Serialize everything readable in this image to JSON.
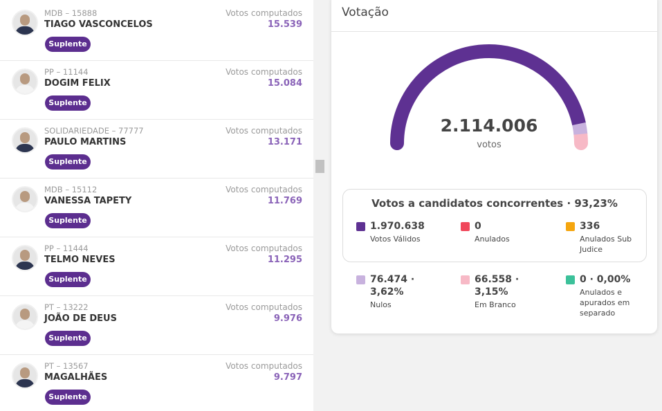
{
  "candidates": [
    {
      "party": "MDB – 15888",
      "name": "TIAGO VASCONCELOS",
      "votes_label": "Votos computados",
      "votes": "15.539",
      "status": "Suplente"
    },
    {
      "party": "PP – 11144",
      "name": "DOGIM FELIX",
      "votes_label": "Votos computados",
      "votes": "15.084",
      "status": "Suplente"
    },
    {
      "party": "SOLIDARIEDADE – 77777",
      "name": "PAULO MARTINS",
      "votes_label": "Votos computados",
      "votes": "13.171",
      "status": "Suplente"
    },
    {
      "party": "MDB – 15112",
      "name": "VANESSA TAPETY",
      "votes_label": "Votos computados",
      "votes": "11.769",
      "status": "Suplente"
    },
    {
      "party": "PP – 11444",
      "name": "TELMO NEVES",
      "votes_label": "Votos computados",
      "votes": "11.295",
      "status": "Suplente"
    },
    {
      "party": "PT – 13222",
      "name": "JOÃO DE DEUS",
      "votes_label": "Votos computados",
      "votes": "9.976",
      "status": "Suplente"
    },
    {
      "party": "PT – 13567",
      "name": "MAGALHÃES",
      "votes_label": "Votos computados",
      "votes": "9.797",
      "status": "Suplente"
    }
  ],
  "voting": {
    "title": "Votação",
    "total": "2.114.006",
    "total_unit": "votos",
    "summary": {
      "title": "Votos a candidatos concorrentes · 93,23%",
      "items": [
        {
          "value": "1.970.638",
          "label": "Votos Válidos"
        },
        {
          "value": "0",
          "label": "Anulados"
        },
        {
          "value": "336",
          "label": "Anulados Sub Judice"
        }
      ]
    },
    "others": [
      {
        "value": "76.474 · 3,62%",
        "label": "Nulos"
      },
      {
        "value": "66.558 · 3,15%",
        "label": "Em Branco"
      },
      {
        "value": "0 · 0,00%",
        "label": "Anulados e apurados em separado"
      }
    ]
  }
}
